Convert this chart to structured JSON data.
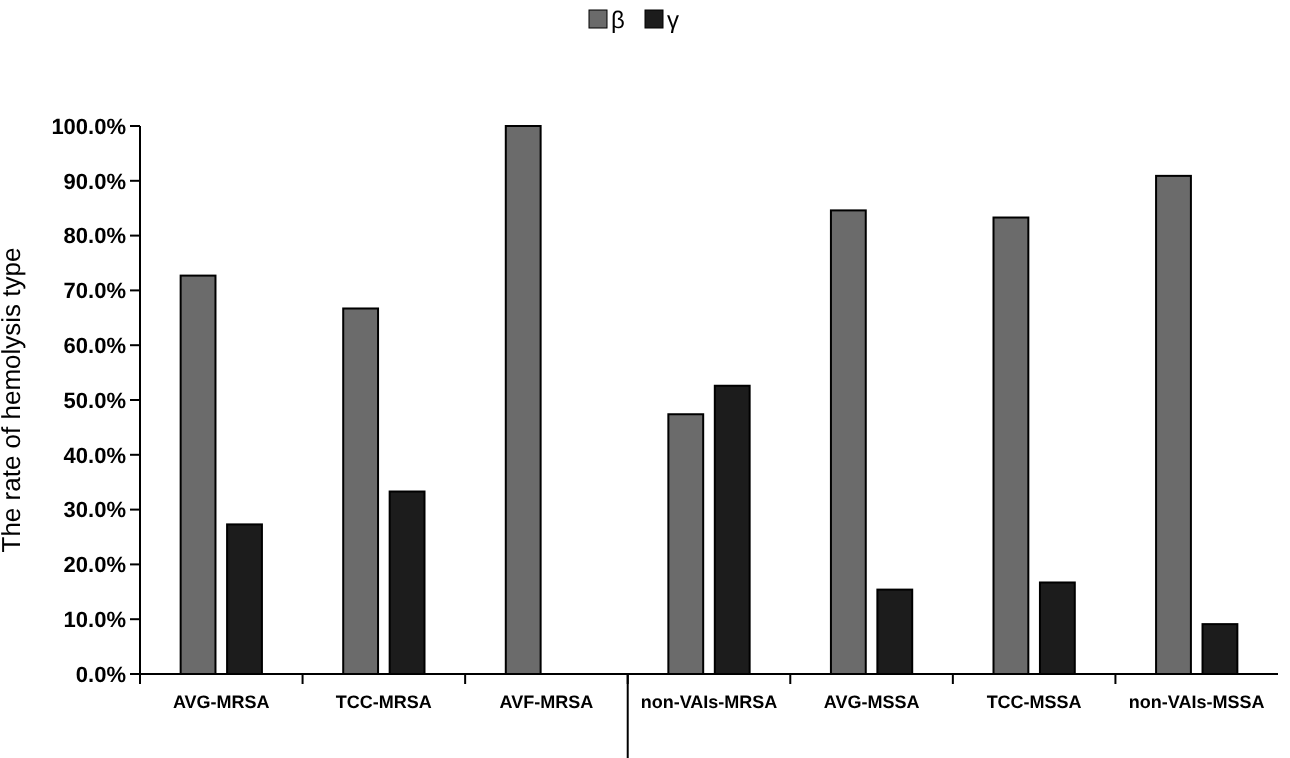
{
  "chart_data": {
    "type": "bar",
    "ylabel": "The rate of hemolysis type",
    "categories": [
      "AVG-MRSA",
      "TCC-MRSA",
      "AVF-MRSA",
      "non-VAIs-MRSA",
      "AVG-MSSA",
      "TCC-MSSA",
      "non-VAIs-MSSA"
    ],
    "series": [
      {
        "name": "β",
        "color": "#6b6b6b",
        "values": [
          72.7,
          66.7,
          100,
          47.4,
          84.6,
          83.3,
          90.9
        ]
      },
      {
        "name": "γ",
        "color": "#1c1c1c",
        "values": [
          27.3,
          33.3,
          0,
          52.6,
          15.4,
          16.7,
          9.1
        ]
      }
    ],
    "ylim": [
      0,
      100
    ],
    "yticks": [
      {
        "value": 0,
        "label": "0.0%"
      },
      {
        "value": 10,
        "label": "10.0%"
      },
      {
        "value": 20,
        "label": "20.0%"
      },
      {
        "value": 30,
        "label": "30.0%"
      },
      {
        "value": 40,
        "label": "40.0%"
      },
      {
        "value": 50,
        "label": "50.0%"
      },
      {
        "value": 60,
        "label": "60.0%"
      },
      {
        "value": 70,
        "label": "70.0%"
      },
      {
        "value": 80,
        "label": "80.0%"
      },
      {
        "value": 90,
        "label": "90.0%"
      },
      {
        "value": 100,
        "label": "100.0%"
      }
    ],
    "grid": false,
    "legend": "top"
  }
}
